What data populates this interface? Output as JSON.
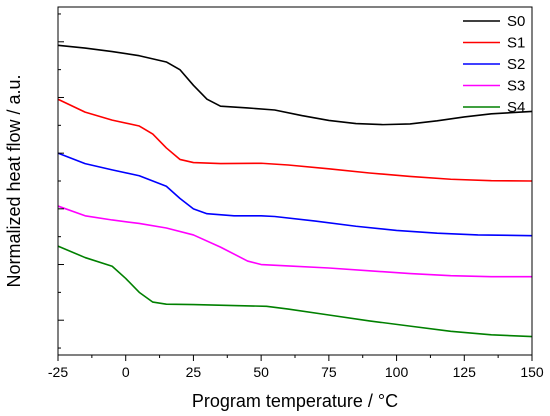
{
  "chart_data": {
    "type": "line",
    "xlabel": "Program temperature / °C",
    "ylabel": "Normalized heat flow / a.u.",
    "xlim": [
      -25,
      150
    ],
    "ylim": [
      0,
      100
    ],
    "x_ticks": [
      -25,
      0,
      25,
      50,
      75,
      100,
      125,
      150
    ],
    "x_tick_labels": [
      "-25",
      "0",
      "25",
      "50",
      "75",
      "100",
      "125",
      "150"
    ],
    "y_tick_labels_shown": false,
    "grid": false,
    "legend_position": "top-right",
    "series": [
      {
        "name": "S0",
        "color": "#000000",
        "points": [
          [
            -25,
            89.0
          ],
          [
            -15,
            88.2
          ],
          [
            -5,
            87.2
          ],
          [
            5,
            86.0
          ],
          [
            15,
            84.2
          ],
          [
            20,
            82.0
          ],
          [
            25,
            77.5
          ],
          [
            30,
            73.5
          ],
          [
            35,
            71.5
          ],
          [
            45,
            71.0
          ],
          [
            55,
            70.4
          ],
          [
            65,
            68.8
          ],
          [
            75,
            67.4
          ],
          [
            85,
            66.5
          ],
          [
            95,
            66.2
          ],
          [
            105,
            66.4
          ],
          [
            115,
            67.3
          ],
          [
            125,
            68.4
          ],
          [
            135,
            69.3
          ],
          [
            150,
            70.0
          ]
        ]
      },
      {
        "name": "S1",
        "color": "#ff0000",
        "points": [
          [
            -25,
            73.5
          ],
          [
            -15,
            69.8
          ],
          [
            -5,
            67.5
          ],
          [
            5,
            65.8
          ],
          [
            10,
            63.5
          ],
          [
            15,
            59.5
          ],
          [
            20,
            56.2
          ],
          [
            25,
            55.3
          ],
          [
            35,
            55.0
          ],
          [
            50,
            55.1
          ],
          [
            60,
            54.6
          ],
          [
            75,
            53.5
          ],
          [
            90,
            52.3
          ],
          [
            105,
            51.3
          ],
          [
            120,
            50.5
          ],
          [
            135,
            50.1
          ],
          [
            150,
            50.0
          ]
        ]
      },
      {
        "name": "S2",
        "color": "#0000ff",
        "points": [
          [
            -25,
            58.0
          ],
          [
            -15,
            55.0
          ],
          [
            -5,
            53.2
          ],
          [
            5,
            51.5
          ],
          [
            15,
            48.5
          ],
          [
            20,
            45.0
          ],
          [
            25,
            42.0
          ],
          [
            30,
            40.6
          ],
          [
            40,
            40.0
          ],
          [
            50,
            40.0
          ],
          [
            55,
            39.8
          ],
          [
            70,
            38.5
          ],
          [
            85,
            37.0
          ],
          [
            100,
            35.8
          ],
          [
            115,
            35.0
          ],
          [
            130,
            34.5
          ],
          [
            150,
            34.3
          ]
        ]
      },
      {
        "name": "S3",
        "color": "#ff00ff",
        "points": [
          [
            -25,
            42.8
          ],
          [
            -15,
            40.0
          ],
          [
            -5,
            38.8
          ],
          [
            5,
            37.8
          ],
          [
            15,
            36.5
          ],
          [
            25,
            34.5
          ],
          [
            35,
            31.0
          ],
          [
            45,
            27.0
          ],
          [
            50,
            26.0
          ],
          [
            60,
            25.6
          ],
          [
            75,
            25.0
          ],
          [
            90,
            24.2
          ],
          [
            105,
            23.4
          ],
          [
            120,
            22.8
          ],
          [
            135,
            22.5
          ],
          [
            150,
            22.5
          ]
        ]
      },
      {
        "name": "S4",
        "color": "#008000",
        "points": [
          [
            -25,
            31.3
          ],
          [
            -15,
            28.0
          ],
          [
            -5,
            25.5
          ],
          [
            0,
            22.0
          ],
          [
            5,
            18.0
          ],
          [
            10,
            15.2
          ],
          [
            15,
            14.6
          ],
          [
            25,
            14.5
          ],
          [
            40,
            14.2
          ],
          [
            52,
            14.0
          ],
          [
            60,
            13.2
          ],
          [
            75,
            11.5
          ],
          [
            90,
            9.8
          ],
          [
            105,
            8.3
          ],
          [
            120,
            6.8
          ],
          [
            135,
            5.8
          ],
          [
            150,
            5.3
          ]
        ]
      }
    ]
  }
}
